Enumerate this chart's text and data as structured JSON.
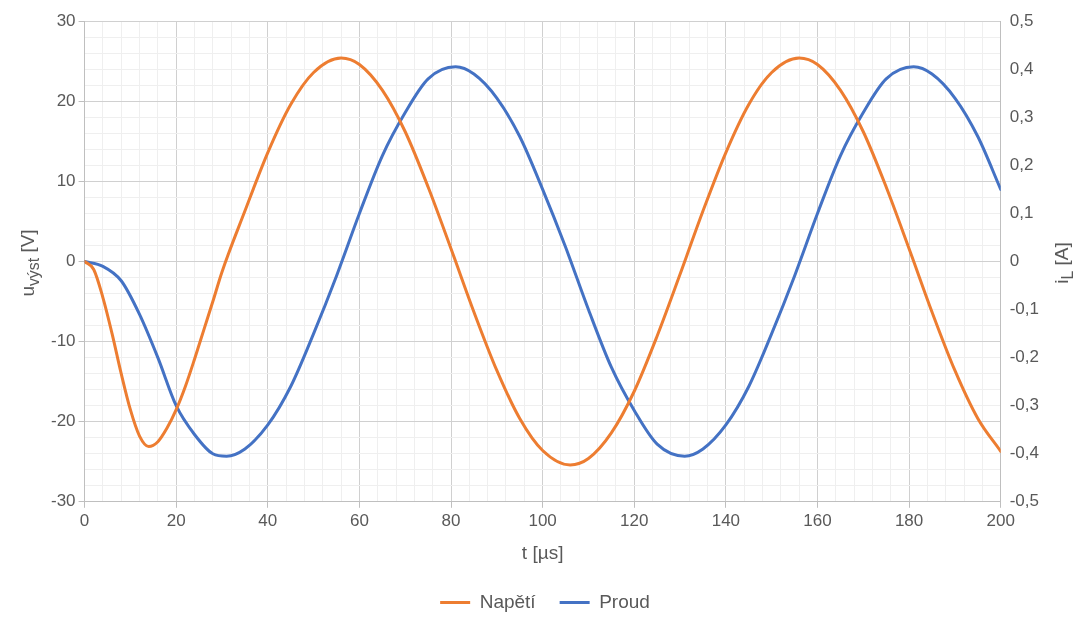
{
  "chart_data": {
    "type": "line",
    "xlabel": "t [µs]",
    "ylabel": "u$_{výst}$ [V]",
    "y2label": "i$_{L}$ [A]",
    "xlim": [
      0,
      200
    ],
    "xticks": [
      0,
      {
        "value": 4,
        "label": null
      },
      {
        "value": 8,
        "label": null
      },
      {
        "value": 12,
        "label": null
      },
      {
        "value": 16,
        "label": null
      },
      20,
      {
        "value": 24,
        "label": null
      },
      {
        "value": 28,
        "label": null
      },
      {
        "value": 32,
        "label": null
      },
      {
        "value": 36,
        "label": null
      },
      40,
      {
        "value": 44,
        "label": null
      },
      {
        "value": 48,
        "label": null
      },
      {
        "value": 52,
        "label": null
      },
      {
        "value": 56,
        "label": null
      },
      60,
      {
        "value": 64,
        "label": null
      },
      {
        "value": 68,
        "label": null
      },
      {
        "value": 72,
        "label": null
      },
      {
        "value": 76,
        "label": null
      },
      80,
      {
        "value": 84,
        "label": null
      },
      {
        "value": 88,
        "label": null
      },
      {
        "value": 92,
        "label": null
      },
      {
        "value": 96,
        "label": null
      },
      100,
      {
        "value": 104,
        "label": null
      },
      {
        "value": 108,
        "label": null
      },
      {
        "value": 112,
        "label": null
      },
      {
        "value": 116,
        "label": null
      },
      120,
      {
        "value": 124,
        "label": null
      },
      {
        "value": 128,
        "label": null
      },
      {
        "value": 132,
        "label": null
      },
      {
        "value": 136,
        "label": null
      },
      140,
      {
        "value": 144,
        "label": null
      },
      {
        "value": 148,
        "label": null
      },
      {
        "value": 152,
        "label": null
      },
      {
        "value": 156,
        "label": null
      },
      160,
      {
        "value": 164,
        "label": null
      },
      {
        "value": 168,
        "label": null
      },
      {
        "value": 172,
        "label": null
      },
      {
        "value": 176,
        "label": null
      },
      180,
      {
        "value": 184,
        "label": null
      },
      {
        "value": 188,
        "label": null
      },
      {
        "value": 192,
        "label": null
      },
      {
        "value": 196,
        "label": null
      },
      200
    ],
    "ylim": [
      -30,
      30
    ],
    "yticks": [
      -30,
      {
        "value": -28,
        "label": null
      },
      {
        "value": -26,
        "label": null
      },
      {
        "value": -24,
        "label": null
      },
      {
        "value": -22,
        "label": null
      },
      -20,
      {
        "value": -18,
        "label": null
      },
      {
        "value": -16,
        "label": null
      },
      {
        "value": -14,
        "label": null
      },
      {
        "value": -12,
        "label": null
      },
      -10,
      {
        "value": -8,
        "label": null
      },
      {
        "value": -6,
        "label": null
      },
      {
        "value": -4,
        "label": null
      },
      {
        "value": -2,
        "label": null
      },
      0,
      {
        "value": 2,
        "label": null
      },
      {
        "value": 4,
        "label": null
      },
      {
        "value": 6,
        "label": null
      },
      {
        "value": 8,
        "label": null
      },
      10,
      {
        "value": 12,
        "label": null
      },
      {
        "value": 14,
        "label": null
      },
      {
        "value": 16,
        "label": null
      },
      {
        "value": 18,
        "label": null
      },
      20,
      {
        "value": 22,
        "label": null
      },
      {
        "value": 24,
        "label": null
      },
      {
        "value": 26,
        "label": null
      },
      {
        "value": 28,
        "label": null
      },
      30
    ],
    "y2lim": [
      -0.5,
      0.5
    ],
    "y2ticks": [
      {
        "value": -0.5,
        "label": "-0,5"
      },
      {
        "value": -0.4,
        "label": "-0,4"
      },
      {
        "value": -0.3,
        "label": "-0,3"
      },
      {
        "value": -0.2,
        "label": "-0,2"
      },
      {
        "value": -0.1,
        "label": "-0,1"
      },
      0,
      {
        "value": 0.1,
        "label": "0,1"
      },
      {
        "value": 0.2,
        "label": "0,2"
      },
      {
        "value": 0.3,
        "label": "0,3"
      },
      {
        "value": 0.4,
        "label": "0,4"
      },
      {
        "value": 0.5,
        "label": "0,5"
      }
    ],
    "grid": true,
    "legend": "bottom",
    "marker": "none",
    "line_style": "solid",
    "series": [
      {
        "name": "Napětí",
        "color": "#ed7d31",
        "x": [
          0,
          2,
          4,
          6,
          8,
          10,
          12,
          14,
          16,
          18,
          20,
          22,
          24,
          26,
          28,
          30,
          35,
          40,
          45,
          50,
          56,
          60,
          65,
          70,
          75,
          80,
          85,
          90,
          95,
          100,
          106,
          110,
          115,
          120,
          125,
          130,
          135,
          140,
          145,
          150,
          156,
          160,
          165,
          170,
          175,
          180,
          185,
          190,
          195,
          200
        ],
        "values": [
          0,
          -1,
          -4.5,
          -9,
          -14,
          -18.5,
          -21.8,
          -23.1,
          -22.5,
          -20.8,
          -18.5,
          -15.6,
          -12.2,
          -8.6,
          -5,
          -1.3,
          6.3,
          13.6,
          19.6,
          23.6,
          25.4,
          24.6,
          21.4,
          16.2,
          9.3,
          1.6,
          -6.3,
          -13.6,
          -19.6,
          -23.6,
          -25.4,
          -24.6,
          -21.4,
          -16.2,
          -9.3,
          -1.6,
          6.3,
          13.6,
          19.6,
          23.6,
          25.4,
          24.6,
          21.4,
          16.2,
          9.3,
          1.6,
          -6.3,
          -13.6,
          -19.6,
          -23.7
        ]
      },
      {
        "name": "Proud",
        "color": "#4472c4",
        "axis": "y2",
        "x": [
          0,
          4,
          8,
          12,
          16,
          20,
          24,
          28,
          31,
          35,
          40,
          45,
          50,
          55,
          60,
          65,
          70,
          75,
          81,
          85,
          90,
          95,
          100,
          105,
          110,
          115,
          120,
          125,
          131,
          135,
          140,
          145,
          150,
          155,
          160,
          165,
          170,
          175,
          181,
          185,
          190,
          195,
          200
        ],
        "values": [
          0,
          -0.01,
          -0.04,
          -0.11,
          -0.2,
          -0.3,
          -0.36,
          -0.4,
          -0.405,
          -0.39,
          -0.34,
          -0.26,
          -0.15,
          -0.03,
          0.1,
          0.22,
          0.31,
          0.38,
          0.405,
          0.39,
          0.34,
          0.26,
          0.15,
          0.03,
          -0.1,
          -0.22,
          -0.31,
          -0.38,
          -0.405,
          -0.39,
          -0.34,
          -0.26,
          -0.15,
          -0.03,
          0.1,
          0.22,
          0.31,
          0.38,
          0.405,
          0.39,
          0.34,
          0.26,
          0.15
        ]
      }
    ]
  }
}
